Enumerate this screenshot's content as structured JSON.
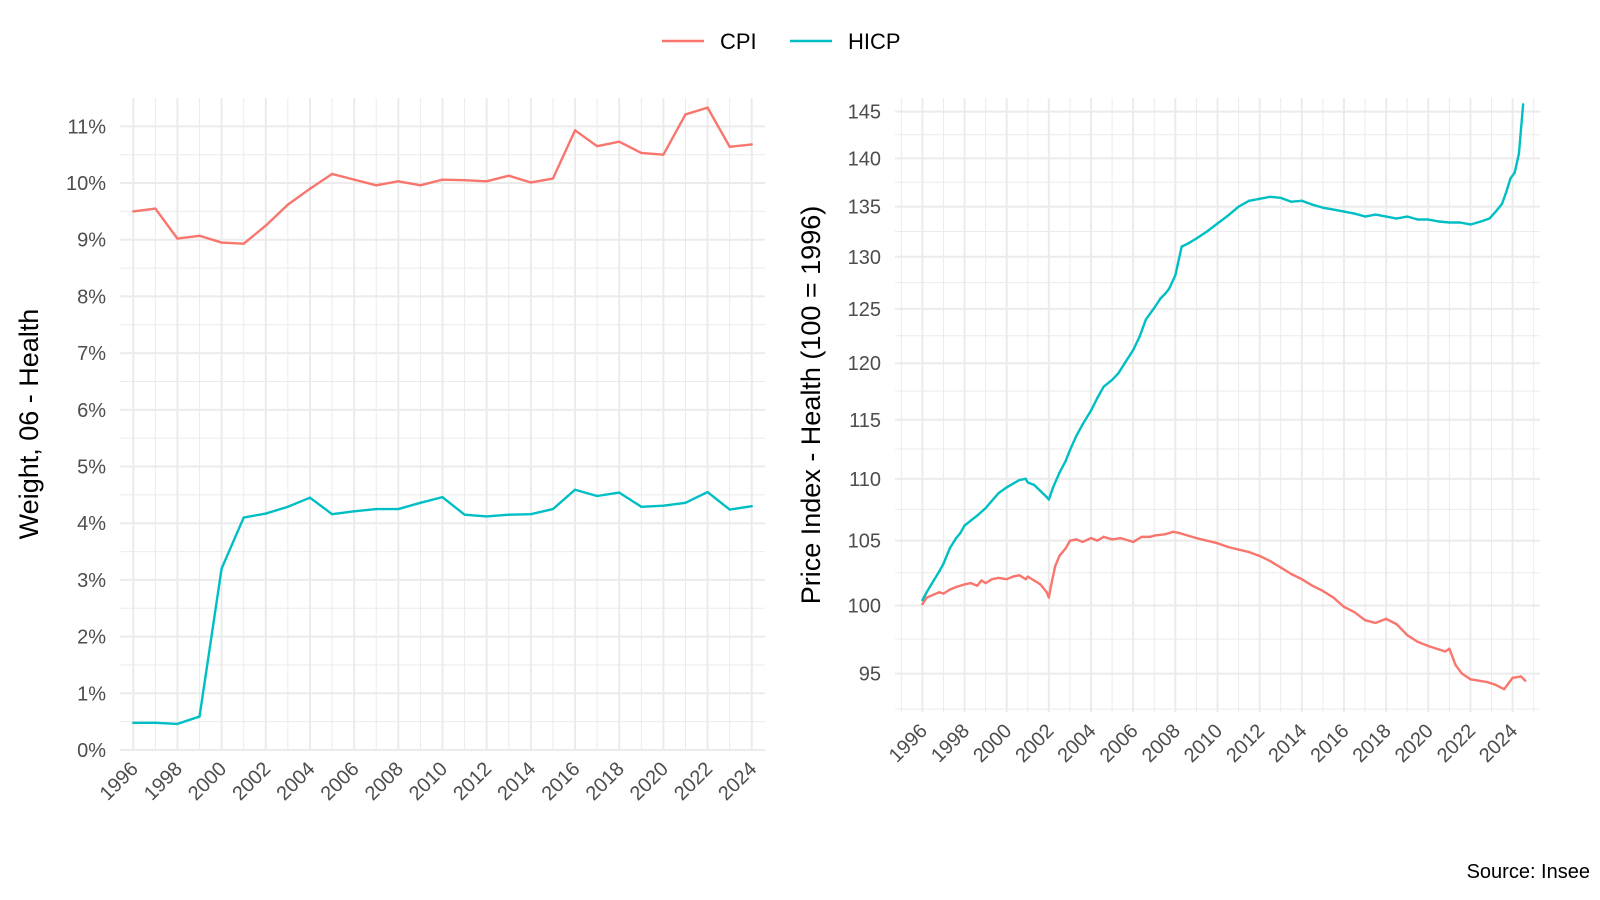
{
  "legend": {
    "position": "top",
    "items": [
      {
        "label": "CPI",
        "color": "#F8766D"
      },
      {
        "label": "HICP",
        "color": "#00BFC4"
      }
    ]
  },
  "caption": "Source: Insee",
  "chart_data": [
    {
      "type": "line",
      "ylabel": "Weight, 06 - Health",
      "ylim": [
        0,
        0.115
      ],
      "yticks": [
        0,
        0.01,
        0.02,
        0.03,
        0.04,
        0.05,
        0.06,
        0.07,
        0.08,
        0.09,
        0.1,
        0.11
      ],
      "ytick_labels": [
        "0%",
        "1%",
        "2%",
        "3%",
        "4%",
        "5%",
        "6%",
        "7%",
        "8%",
        "9%",
        "10%",
        "11%"
      ],
      "xlim": [
        1995.4,
        2024.6
      ],
      "xticks": [
        1996,
        1998,
        2000,
        2002,
        2004,
        2006,
        2008,
        2010,
        2012,
        2014,
        2016,
        2018,
        2020,
        2022,
        2024
      ],
      "xtick_labels": [
        "1996",
        "1998",
        "2000",
        "2002",
        "2004",
        "2006",
        "2008",
        "2010",
        "2012",
        "2014",
        "2016",
        "2018",
        "2020",
        "2022",
        "2024"
      ],
      "grid": true,
      "x": [
        1996,
        1997,
        1998,
        1999,
        2000,
        2001,
        2002,
        2003,
        2004,
        2005,
        2006,
        2007,
        2008,
        2009,
        2010,
        2011,
        2012,
        2013,
        2014,
        2015,
        2016,
        2017,
        2018,
        2019,
        2020,
        2021,
        2022,
        2023,
        2024
      ],
      "series": [
        {
          "name": "CPI",
          "color": "#F8766D",
          "values": [
            0.095,
            0.0955,
            0.0902,
            0.0907,
            0.0895,
            0.0893,
            0.0925,
            0.0962,
            0.099,
            0.1016,
            0.1006,
            0.0996,
            0.1003,
            0.0996,
            0.1006,
            0.1005,
            0.1003,
            0.1013,
            0.1001,
            0.1008,
            0.1093,
            0.1065,
            0.1073,
            0.1053,
            0.105,
            0.1121,
            0.1133,
            0.1064,
            0.1068
          ]
        },
        {
          "name": "HICP",
          "color": "#00BFC4",
          "values": [
            0.0048,
            0.0048,
            0.0046,
            0.0059,
            0.032,
            0.041,
            0.0417,
            0.0429,
            0.0445,
            0.0416,
            0.0421,
            0.0425,
            0.0425,
            0.0436,
            0.0446,
            0.0415,
            0.0412,
            0.0415,
            0.0416,
            0.0425,
            0.0459,
            0.0448,
            0.0454,
            0.0429,
            0.0431,
            0.0436,
            0.0455,
            0.0424,
            0.043
          ]
        }
      ]
    },
    {
      "type": "line",
      "ylabel": "Price Index - Health (100 = 1996)",
      "ylog": true,
      "ylim": [
        92.3,
        146.5
      ],
      "yticks": [
        95,
        100,
        105,
        110,
        115,
        120,
        125,
        130,
        135,
        140,
        145
      ],
      "ytick_labels": [
        "95",
        "100",
        "105",
        "110",
        "115",
        "120",
        "125",
        "130",
        "135",
        "140",
        "145"
      ],
      "xlim": [
        1994.7,
        2025.3
      ],
      "xticks": [
        1996,
        1998,
        2000,
        2002,
        2004,
        2006,
        2008,
        2010,
        2012,
        2014,
        2016,
        2018,
        2020,
        2022,
        2024
      ],
      "xtick_labels": [
        "1996",
        "1998",
        "2000",
        "2002",
        "2004",
        "2006",
        "2008",
        "2010",
        "2012",
        "2014",
        "2016",
        "2018",
        "2020",
        "2022",
        "2024"
      ],
      "grid": true,
      "series": [
        {
          "name": "CPI",
          "color": "#F8766D",
          "x": [
            1996.0,
            1996.2,
            1996.5,
            1996.8,
            1997.0,
            1997.3,
            1997.6,
            1998.0,
            1998.3,
            1998.6,
            1998.8,
            1999.0,
            1999.3,
            1999.6,
            2000.0,
            2000.3,
            2000.6,
            2000.9,
            2001.0,
            2001.3,
            2001.6,
            2001.9,
            2002.0,
            2002.1,
            2002.3,
            2002.5,
            2002.8,
            2003.0,
            2003.3,
            2003.6,
            2004.0,
            2004.3,
            2004.6,
            2005.0,
            2005.4,
            2005.8,
            2006.0,
            2006.4,
            2006.8,
            2007.0,
            2007.5,
            2007.9,
            2008.2,
            2008.6,
            2009.0,
            2009.5,
            2010.0,
            2010.5,
            2011.0,
            2011.5,
            2012.0,
            2012.5,
            2013.0,
            2013.5,
            2014.0,
            2014.5,
            2015.0,
            2015.5,
            2016.0,
            2016.5,
            2017.0,
            2017.5,
            2018.0,
            2018.5,
            2019.0,
            2019.5,
            2020.0,
            2020.4,
            2020.8,
            2021.0,
            2021.3,
            2021.6,
            2022.0,
            2022.4,
            2022.8,
            2023.2,
            2023.6,
            2024.0,
            2024.4,
            2024.6
          ],
          "values": [
            100.1,
            100.6,
            100.8,
            101.0,
            100.9,
            101.2,
            101.4,
            101.6,
            101.7,
            101.5,
            101.9,
            101.7,
            102.0,
            102.1,
            102.0,
            102.2,
            102.3,
            102.0,
            102.2,
            101.9,
            101.6,
            101.0,
            100.6,
            101.5,
            103.0,
            103.8,
            104.4,
            105.0,
            105.1,
            104.9,
            105.2,
            105.0,
            105.3,
            105.1,
            105.2,
            105.0,
            104.9,
            105.3,
            105.3,
            105.4,
            105.5,
            105.7,
            105.6,
            105.4,
            105.2,
            105.0,
            104.8,
            104.5,
            104.3,
            104.1,
            103.8,
            103.4,
            102.9,
            102.4,
            102.0,
            101.5,
            101.1,
            100.6,
            99.9,
            99.5,
            98.9,
            98.7,
            99.0,
            98.6,
            97.8,
            97.3,
            97.0,
            96.8,
            96.6,
            96.8,
            95.6,
            95.0,
            94.6,
            94.5,
            94.4,
            94.2,
            93.9,
            94.7,
            94.8,
            94.5
          ]
        },
        {
          "name": "HICP",
          "color": "#00BFC4",
          "x": [
            1996.0,
            1996.2,
            1996.5,
            1996.8,
            1997.0,
            1997.3,
            1997.6,
            1997.8,
            1998.0,
            1998.3,
            1998.6,
            1999.0,
            1999.3,
            1999.6,
            2000.0,
            2000.3,
            2000.6,
            2000.9,
            2001.0,
            2001.3,
            2001.6,
            2001.9,
            2002.0,
            2002.2,
            2002.5,
            2002.8,
            2003.0,
            2003.3,
            2003.6,
            2004.0,
            2004.3,
            2004.6,
            2005.0,
            2005.3,
            2005.6,
            2006.0,
            2006.3,
            2006.6,
            2007.0,
            2007.3,
            2007.5,
            2007.7,
            2008.0,
            2008.3,
            2008.6,
            2009.0,
            2009.5,
            2010.0,
            2010.5,
            2011.0,
            2011.5,
            2012.0,
            2012.5,
            2013.0,
            2013.5,
            2014.0,
            2014.5,
            2015.0,
            2015.5,
            2016.0,
            2016.5,
            2017.0,
            2017.5,
            2018.0,
            2018.5,
            2019.0,
            2019.5,
            2020.0,
            2020.5,
            2021.0,
            2021.5,
            2022.0,
            2022.5,
            2022.9,
            2023.2,
            2023.5,
            2023.7,
            2023.9,
            2024.1,
            2024.3,
            2024.5
          ],
          "values": [
            100.4,
            101.0,
            101.8,
            102.6,
            103.2,
            104.4,
            105.2,
            105.6,
            106.2,
            106.6,
            107.0,
            107.6,
            108.2,
            108.8,
            109.3,
            109.6,
            109.9,
            110.0,
            109.7,
            109.5,
            109.0,
            108.5,
            108.3,
            109.3,
            110.5,
            111.5,
            112.4,
            113.6,
            114.6,
            115.8,
            116.9,
            117.9,
            118.5,
            119.1,
            120.0,
            121.2,
            122.4,
            124.0,
            125.1,
            126.0,
            126.4,
            126.9,
            128.2,
            131.0,
            131.3,
            131.8,
            132.5,
            133.3,
            134.1,
            135.0,
            135.6,
            135.8,
            136.0,
            135.9,
            135.5,
            135.6,
            135.2,
            134.9,
            134.7,
            134.5,
            134.3,
            134.0,
            134.2,
            134.0,
            133.8,
            134.0,
            133.7,
            133.7,
            133.5,
            133.4,
            133.4,
            133.2,
            133.5,
            133.8,
            134.5,
            135.3,
            136.5,
            137.9,
            138.5,
            140.5,
            145.8
          ]
        }
      ]
    }
  ]
}
